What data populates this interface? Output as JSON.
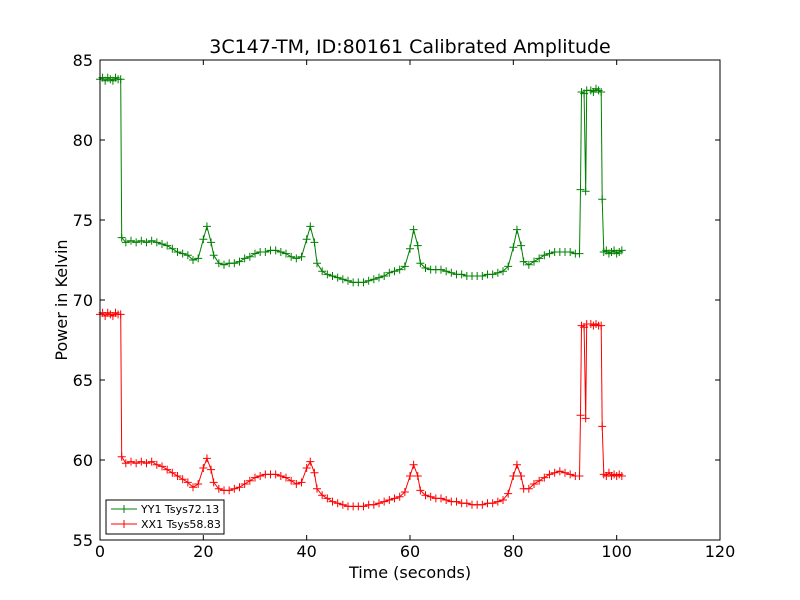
{
  "chart_data": {
    "type": "line",
    "title": "3C147-TM, ID:80161 Calibrated Amplitude",
    "xlabel": "Time (seconds)",
    "ylabel": "Power in Kelvin",
    "xlim": [
      0,
      120
    ],
    "ylim": [
      55,
      85
    ],
    "xticks": [
      0,
      20,
      40,
      60,
      80,
      100,
      120
    ],
    "yticks": [
      55,
      60,
      65,
      70,
      75,
      80,
      85
    ],
    "grid": false,
    "legend_position": "lower-left",
    "marker": "+",
    "series": [
      {
        "name": "YY1 Tsys72.13",
        "color": "#008000",
        "points": [
          [
            0,
            83.8
          ],
          [
            0.5,
            83.9
          ],
          [
            1,
            83.7
          ],
          [
            1.5,
            83.9
          ],
          [
            2,
            83.8
          ],
          [
            2.5,
            83.7
          ],
          [
            3,
            83.9
          ],
          [
            3.5,
            83.8
          ],
          [
            4,
            83.8
          ],
          [
            4.2,
            73.9
          ],
          [
            5,
            73.6
          ],
          [
            6,
            73.7
          ],
          [
            7,
            73.6
          ],
          [
            8,
            73.7
          ],
          [
            9,
            73.6
          ],
          [
            10,
            73.7
          ],
          [
            11,
            73.6
          ],
          [
            12,
            73.5
          ],
          [
            13,
            73.4
          ],
          [
            14,
            73.2
          ],
          [
            15,
            73.0
          ],
          [
            16,
            72.9
          ],
          [
            17,
            72.8
          ],
          [
            18,
            72.5
          ],
          [
            19,
            72.6
          ],
          [
            20,
            73.8
          ],
          [
            20.7,
            74.6
          ],
          [
            21.5,
            73.6
          ],
          [
            22,
            72.8
          ],
          [
            23,
            72.3
          ],
          [
            24,
            72.2
          ],
          [
            25,
            72.3
          ],
          [
            26,
            72.3
          ],
          [
            27,
            72.4
          ],
          [
            28,
            72.6
          ],
          [
            29,
            72.7
          ],
          [
            30,
            72.9
          ],
          [
            31,
            73.0
          ],
          [
            32,
            73.0
          ],
          [
            33,
            73.1
          ],
          [
            34,
            73.1
          ],
          [
            35,
            73.0
          ],
          [
            36,
            72.9
          ],
          [
            37,
            72.7
          ],
          [
            38,
            72.6
          ],
          [
            39,
            72.7
          ],
          [
            40,
            73.8
          ],
          [
            40.7,
            74.6
          ],
          [
            41.5,
            73.6
          ],
          [
            42,
            72.3
          ],
          [
            43,
            71.8
          ],
          [
            44,
            71.6
          ],
          [
            45,
            71.5
          ],
          [
            46,
            71.4
          ],
          [
            47,
            71.3
          ],
          [
            48,
            71.2
          ],
          [
            49,
            71.1
          ],
          [
            50,
            71.1
          ],
          [
            51,
            71.1
          ],
          [
            52,
            71.2
          ],
          [
            53,
            71.3
          ],
          [
            54,
            71.4
          ],
          [
            55,
            71.5
          ],
          [
            56,
            71.7
          ],
          [
            57,
            71.8
          ],
          [
            58,
            71.9
          ],
          [
            59,
            72.1
          ],
          [
            60,
            73.2
          ],
          [
            60.7,
            74.4
          ],
          [
            61.5,
            73.4
          ],
          [
            62,
            72.3
          ],
          [
            63,
            72.0
          ],
          [
            64,
            71.9
          ],
          [
            65,
            71.9
          ],
          [
            66,
            71.9
          ],
          [
            67,
            71.8
          ],
          [
            68,
            71.7
          ],
          [
            69,
            71.6
          ],
          [
            70,
            71.6
          ],
          [
            71,
            71.5
          ],
          [
            72,
            71.5
          ],
          [
            73,
            71.5
          ],
          [
            74,
            71.5
          ],
          [
            75,
            71.6
          ],
          [
            76,
            71.6
          ],
          [
            77,
            71.7
          ],
          [
            78,
            71.8
          ],
          [
            79,
            72.1
          ],
          [
            80,
            73.3
          ],
          [
            80.7,
            74.4
          ],
          [
            81.5,
            73.4
          ],
          [
            82,
            72.4
          ],
          [
            83,
            72.2
          ],
          [
            84,
            72.4
          ],
          [
            85,
            72.6
          ],
          [
            86,
            72.8
          ],
          [
            87,
            72.9
          ],
          [
            88,
            73.0
          ],
          [
            89,
            73.0
          ],
          [
            90,
            73.0
          ],
          [
            91,
            73.0
          ],
          [
            92,
            72.9
          ],
          [
            92.8,
            72.9
          ],
          [
            93,
            76.9
          ],
          [
            93.2,
            83.0
          ],
          [
            93.7,
            82.9
          ],
          [
            94,
            76.8
          ],
          [
            94.2,
            83.1
          ],
          [
            95,
            83.1
          ],
          [
            95.5,
            83.0
          ],
          [
            96,
            83.2
          ],
          [
            96.5,
            83.1
          ],
          [
            97,
            83.0
          ],
          [
            97.2,
            76.3
          ],
          [
            97.5,
            73.0
          ],
          [
            98,
            73.1
          ],
          [
            98.5,
            72.9
          ],
          [
            99,
            73.0
          ],
          [
            99.5,
            73.1
          ],
          [
            100,
            72.9
          ],
          [
            100.5,
            73.0
          ],
          [
            101,
            73.1
          ]
        ]
      },
      {
        "name": "XX1 Tsys58.83",
        "color": "#ff0000",
        "points": [
          [
            0,
            69.1
          ],
          [
            0.5,
            69.2
          ],
          [
            1,
            69.0
          ],
          [
            1.5,
            69.2
          ],
          [
            2,
            69.1
          ],
          [
            2.5,
            69.0
          ],
          [
            3,
            69.2
          ],
          [
            3.5,
            69.1
          ],
          [
            4,
            69.1
          ],
          [
            4.2,
            60.2
          ],
          [
            5,
            59.8
          ],
          [
            6,
            59.9
          ],
          [
            7,
            59.8
          ],
          [
            8,
            59.9
          ],
          [
            9,
            59.8
          ],
          [
            10,
            59.9
          ],
          [
            11,
            59.7
          ],
          [
            12,
            59.6
          ],
          [
            13,
            59.4
          ],
          [
            14,
            59.2
          ],
          [
            15,
            59.0
          ],
          [
            16,
            58.8
          ],
          [
            17,
            58.6
          ],
          [
            18,
            58.3
          ],
          [
            19,
            58.5
          ],
          [
            20,
            59.5
          ],
          [
            20.7,
            60.1
          ],
          [
            21.5,
            59.4
          ],
          [
            22,
            58.6
          ],
          [
            23,
            58.2
          ],
          [
            24,
            58.1
          ],
          [
            25,
            58.1
          ],
          [
            26,
            58.2
          ],
          [
            27,
            58.3
          ],
          [
            28,
            58.5
          ],
          [
            29,
            58.7
          ],
          [
            30,
            58.9
          ],
          [
            31,
            59.0
          ],
          [
            32,
            59.1
          ],
          [
            33,
            59.1
          ],
          [
            34,
            59.1
          ],
          [
            35,
            59.0
          ],
          [
            36,
            58.9
          ],
          [
            37,
            58.7
          ],
          [
            38,
            58.5
          ],
          [
            39,
            58.6
          ],
          [
            40,
            59.5
          ],
          [
            40.7,
            59.9
          ],
          [
            41.5,
            59.2
          ],
          [
            42,
            58.2
          ],
          [
            43,
            57.8
          ],
          [
            44,
            57.6
          ],
          [
            45,
            57.4
          ],
          [
            46,
            57.3
          ],
          [
            47,
            57.2
          ],
          [
            48,
            57.1
          ],
          [
            49,
            57.1
          ],
          [
            50,
            57.1
          ],
          [
            51,
            57.1
          ],
          [
            52,
            57.2
          ],
          [
            53,
            57.2
          ],
          [
            54,
            57.3
          ],
          [
            55,
            57.4
          ],
          [
            56,
            57.5
          ],
          [
            57,
            57.6
          ],
          [
            58,
            57.7
          ],
          [
            59,
            58.0
          ],
          [
            60,
            59.0
          ],
          [
            60.7,
            59.7
          ],
          [
            61.5,
            59.0
          ],
          [
            62,
            58.1
          ],
          [
            63,
            57.8
          ],
          [
            64,
            57.7
          ],
          [
            65,
            57.6
          ],
          [
            66,
            57.6
          ],
          [
            67,
            57.5
          ],
          [
            68,
            57.4
          ],
          [
            69,
            57.4
          ],
          [
            70,
            57.3
          ],
          [
            71,
            57.3
          ],
          [
            72,
            57.2
          ],
          [
            73,
            57.2
          ],
          [
            74,
            57.2
          ],
          [
            75,
            57.3
          ],
          [
            76,
            57.3
          ],
          [
            77,
            57.4
          ],
          [
            78,
            57.5
          ],
          [
            79,
            57.9
          ],
          [
            80,
            59.0
          ],
          [
            80.7,
            59.7
          ],
          [
            81.5,
            59.0
          ],
          [
            82,
            58.2
          ],
          [
            83,
            58.2
          ],
          [
            84,
            58.5
          ],
          [
            85,
            58.7
          ],
          [
            86,
            58.9
          ],
          [
            87,
            59.1
          ],
          [
            88,
            59.2
          ],
          [
            89,
            59.3
          ],
          [
            90,
            59.2
          ],
          [
            91,
            59.1
          ],
          [
            92,
            59.0
          ],
          [
            92.8,
            59.0
          ],
          [
            93,
            62.8
          ],
          [
            93.2,
            68.4
          ],
          [
            93.7,
            68.3
          ],
          [
            94,
            62.6
          ],
          [
            94.2,
            68.5
          ],
          [
            95,
            68.5
          ],
          [
            95.5,
            68.4
          ],
          [
            96,
            68.5
          ],
          [
            96.5,
            68.4
          ],
          [
            97,
            68.4
          ],
          [
            97.2,
            62.1
          ],
          [
            97.5,
            59.1
          ],
          [
            98,
            59.0
          ],
          [
            98.5,
            59.2
          ],
          [
            99,
            59.0
          ],
          [
            99.5,
            59.1
          ],
          [
            100,
            59.0
          ],
          [
            100.5,
            59.1
          ],
          [
            101,
            59.0
          ]
        ]
      }
    ]
  }
}
